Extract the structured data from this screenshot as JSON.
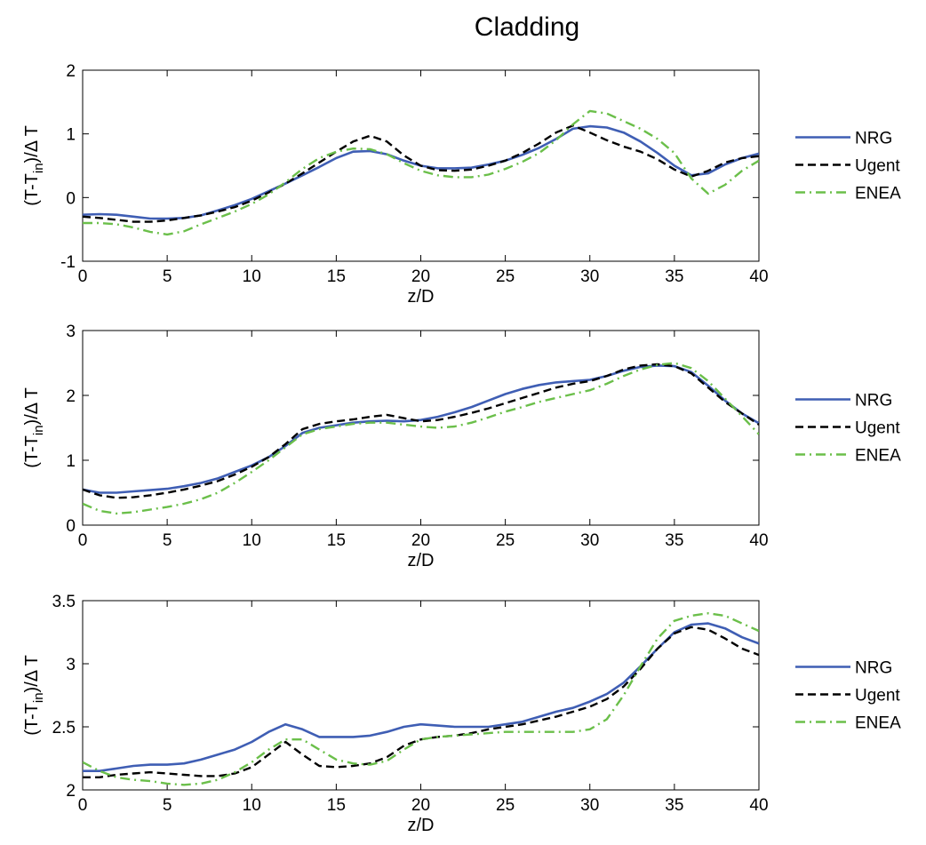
{
  "figure_title": "Cladding",
  "colors": {
    "NRG": "#3f5eb4",
    "Ugent": "#000000",
    "ENEA": "#6bbf4a"
  },
  "chart_data": [
    {
      "type": "line",
      "title": "Cladding",
      "xlabel": "z/D",
      "ylabel_main": "(T-T",
      "ylabel_sub": "in",
      "ylabel_tail": ")/Δ T",
      "xlim": [
        0,
        40
      ],
      "ylim": [
        -1,
        2
      ],
      "xticks": [
        "0",
        "5",
        "10",
        "15",
        "20",
        "25",
        "30",
        "35",
        "40"
      ],
      "yticks": [
        "-1",
        "0",
        "1",
        "2"
      ],
      "ytick_values": [
        -1,
        0,
        1,
        2
      ],
      "grid": false,
      "legend_position": "outside-right",
      "series": [
        {
          "name": "NRG",
          "style": "solid",
          "x": [
            0,
            1,
            2,
            3,
            4,
            5,
            6,
            7,
            8,
            9,
            10,
            11,
            12,
            13,
            14,
            15,
            16,
            17,
            18,
            19,
            20,
            21,
            22,
            23,
            24,
            25,
            26,
            27,
            28,
            29,
            30,
            31,
            32,
            33,
            34,
            35,
            36,
            37,
            38,
            39,
            40
          ],
          "y": [
            -0.27,
            -0.26,
            -0.27,
            -0.3,
            -0.33,
            -0.33,
            -0.32,
            -0.28,
            -0.2,
            -0.12,
            -0.02,
            0.1,
            0.22,
            0.35,
            0.48,
            0.62,
            0.72,
            0.73,
            0.68,
            0.58,
            0.5,
            0.46,
            0.46,
            0.47,
            0.52,
            0.58,
            0.67,
            0.78,
            0.92,
            1.08,
            1.12,
            1.1,
            1.02,
            0.88,
            0.7,
            0.5,
            0.35,
            0.38,
            0.52,
            0.62,
            0.69
          ]
        },
        {
          "name": "Ugent",
          "style": "dashed",
          "x": [
            0,
            1,
            2,
            3,
            4,
            5,
            6,
            7,
            8,
            9,
            10,
            11,
            12,
            13,
            14,
            15,
            16,
            17,
            18,
            19,
            20,
            21,
            22,
            23,
            24,
            25,
            26,
            27,
            28,
            29,
            30,
            31,
            32,
            33,
            34,
            35,
            36,
            37,
            38,
            39,
            40
          ],
          "y": [
            -0.3,
            -0.32,
            -0.35,
            -0.38,
            -0.38,
            -0.36,
            -0.32,
            -0.28,
            -0.22,
            -0.15,
            -0.05,
            0.08,
            0.22,
            0.38,
            0.55,
            0.72,
            0.88,
            0.97,
            0.88,
            0.66,
            0.5,
            0.43,
            0.42,
            0.44,
            0.5,
            0.58,
            0.7,
            0.85,
            1.02,
            1.13,
            1.02,
            0.9,
            0.8,
            0.72,
            0.6,
            0.44,
            0.33,
            0.42,
            0.55,
            0.62,
            0.65
          ]
        },
        {
          "name": "ENEA",
          "style": "dashdot",
          "x": [
            0,
            1,
            2,
            3,
            4,
            5,
            6,
            7,
            8,
            9,
            10,
            11,
            12,
            13,
            14,
            15,
            16,
            17,
            18,
            19,
            20,
            21,
            22,
            23,
            24,
            25,
            26,
            27,
            28,
            29,
            30,
            31,
            32,
            33,
            34,
            35,
            36,
            37,
            38,
            39,
            40
          ],
          "y": [
            -0.4,
            -0.4,
            -0.42,
            -0.47,
            -0.54,
            -0.58,
            -0.53,
            -0.42,
            -0.32,
            -0.22,
            -0.1,
            0.05,
            0.24,
            0.45,
            0.62,
            0.72,
            0.77,
            0.76,
            0.68,
            0.54,
            0.42,
            0.35,
            0.32,
            0.32,
            0.36,
            0.45,
            0.56,
            0.7,
            0.9,
            1.15,
            1.36,
            1.32,
            1.2,
            1.08,
            0.92,
            0.7,
            0.3,
            0.06,
            0.2,
            0.42,
            0.58
          ]
        }
      ]
    },
    {
      "type": "line",
      "xlabel": "z/D",
      "ylabel_main": "(T-T",
      "ylabel_sub": "in",
      "ylabel_tail": ")/Δ T",
      "xlim": [
        0,
        40
      ],
      "ylim": [
        0,
        3
      ],
      "xticks": [
        "0",
        "5",
        "10",
        "15",
        "20",
        "25",
        "30",
        "35",
        "40"
      ],
      "yticks": [
        "0",
        "1",
        "2",
        "3"
      ],
      "ytick_values": [
        0,
        1,
        2,
        3
      ],
      "grid": false,
      "legend_position": "outside-right",
      "series": [
        {
          "name": "NRG",
          "style": "solid",
          "x": [
            0,
            1,
            2,
            3,
            4,
            5,
            6,
            7,
            8,
            9,
            10,
            11,
            12,
            13,
            14,
            15,
            16,
            17,
            18,
            19,
            20,
            21,
            22,
            23,
            24,
            25,
            26,
            27,
            28,
            29,
            30,
            31,
            32,
            33,
            34,
            35,
            36,
            37,
            38,
            39,
            40
          ],
          "y": [
            0.55,
            0.5,
            0.5,
            0.52,
            0.54,
            0.56,
            0.6,
            0.65,
            0.72,
            0.82,
            0.92,
            1.05,
            1.22,
            1.42,
            1.5,
            1.54,
            1.58,
            1.6,
            1.61,
            1.6,
            1.62,
            1.67,
            1.74,
            1.82,
            1.92,
            2.02,
            2.1,
            2.16,
            2.2,
            2.22,
            2.24,
            2.3,
            2.38,
            2.44,
            2.46,
            2.45,
            2.36,
            2.15,
            1.92,
            1.72,
            1.57
          ]
        },
        {
          "name": "Ugent",
          "style": "dashed",
          "x": [
            0,
            1,
            2,
            3,
            4,
            5,
            6,
            7,
            8,
            9,
            10,
            11,
            12,
            13,
            14,
            15,
            16,
            17,
            18,
            19,
            20,
            21,
            22,
            23,
            24,
            25,
            26,
            27,
            28,
            29,
            30,
            31,
            32,
            33,
            34,
            35,
            36,
            37,
            38,
            39,
            40
          ],
          "y": [
            0.55,
            0.46,
            0.42,
            0.43,
            0.46,
            0.5,
            0.55,
            0.61,
            0.68,
            0.78,
            0.9,
            1.05,
            1.25,
            1.48,
            1.56,
            1.6,
            1.63,
            1.67,
            1.7,
            1.65,
            1.6,
            1.62,
            1.67,
            1.73,
            1.8,
            1.88,
            1.96,
            2.04,
            2.12,
            2.18,
            2.22,
            2.3,
            2.4,
            2.46,
            2.48,
            2.45,
            2.34,
            2.12,
            1.9,
            1.72,
            1.55
          ]
        },
        {
          "name": "ENEA",
          "style": "dashdot",
          "x": [
            0,
            1,
            2,
            3,
            4,
            5,
            6,
            7,
            8,
            9,
            10,
            11,
            12,
            13,
            14,
            15,
            16,
            17,
            18,
            19,
            20,
            21,
            22,
            23,
            24,
            25,
            26,
            27,
            28,
            29,
            30,
            31,
            32,
            33,
            34,
            35,
            36,
            37,
            38,
            39,
            40
          ],
          "y": [
            0.33,
            0.22,
            0.18,
            0.2,
            0.24,
            0.28,
            0.33,
            0.4,
            0.5,
            0.65,
            0.82,
            1.0,
            1.2,
            1.4,
            1.48,
            1.52,
            1.56,
            1.58,
            1.58,
            1.55,
            1.52,
            1.5,
            1.52,
            1.58,
            1.66,
            1.75,
            1.82,
            1.9,
            1.96,
            2.02,
            2.08,
            2.18,
            2.3,
            2.4,
            2.47,
            2.5,
            2.42,
            2.22,
            1.95,
            1.68,
            1.4
          ]
        }
      ]
    },
    {
      "type": "line",
      "xlabel": "z/D",
      "ylabel_main": "(T-T",
      "ylabel_sub": "in",
      "ylabel_tail": ")/Δ T",
      "xlim": [
        0,
        40
      ],
      "ylim": [
        2,
        3.5
      ],
      "xticks": [
        "0",
        "5",
        "10",
        "15",
        "20",
        "25",
        "30",
        "35",
        "40"
      ],
      "yticks": [
        "2",
        "2.5",
        "3",
        "3.5"
      ],
      "ytick_values": [
        2,
        2.5,
        3,
        3.5
      ],
      "grid": false,
      "legend_position": "outside-right",
      "series": [
        {
          "name": "NRG",
          "style": "solid",
          "x": [
            0,
            1,
            2,
            3,
            4,
            5,
            6,
            7,
            8,
            9,
            10,
            11,
            12,
            13,
            14,
            15,
            16,
            17,
            18,
            19,
            20,
            21,
            22,
            23,
            24,
            25,
            26,
            27,
            28,
            29,
            30,
            31,
            32,
            33,
            34,
            35,
            36,
            37,
            38,
            39,
            40
          ],
          "y": [
            2.15,
            2.15,
            2.17,
            2.19,
            2.2,
            2.2,
            2.21,
            2.24,
            2.28,
            2.32,
            2.38,
            2.46,
            2.52,
            2.48,
            2.42,
            2.42,
            2.42,
            2.43,
            2.46,
            2.5,
            2.52,
            2.51,
            2.5,
            2.5,
            2.5,
            2.52,
            2.54,
            2.58,
            2.62,
            2.65,
            2.7,
            2.76,
            2.85,
            2.98,
            3.12,
            3.25,
            3.31,
            3.32,
            3.28,
            3.21,
            3.16
          ]
        },
        {
          "name": "Ugent",
          "style": "dashed",
          "x": [
            0,
            1,
            2,
            3,
            4,
            5,
            6,
            7,
            8,
            9,
            10,
            11,
            12,
            13,
            14,
            15,
            16,
            17,
            18,
            19,
            20,
            21,
            22,
            23,
            24,
            25,
            26,
            27,
            28,
            29,
            30,
            31,
            32,
            33,
            34,
            35,
            36,
            37,
            38,
            39,
            40
          ],
          "y": [
            2.1,
            2.1,
            2.12,
            2.13,
            2.14,
            2.13,
            2.12,
            2.11,
            2.11,
            2.13,
            2.18,
            2.28,
            2.38,
            2.28,
            2.19,
            2.18,
            2.19,
            2.21,
            2.26,
            2.35,
            2.4,
            2.42,
            2.43,
            2.45,
            2.48,
            2.5,
            2.52,
            2.55,
            2.58,
            2.62,
            2.66,
            2.72,
            2.82,
            2.96,
            3.12,
            3.24,
            3.29,
            3.27,
            3.2,
            3.12,
            3.07
          ]
        },
        {
          "name": "ENEA",
          "style": "dashdot",
          "x": [
            0,
            1,
            2,
            3,
            4,
            5,
            6,
            7,
            8,
            9,
            10,
            11,
            12,
            13,
            14,
            15,
            16,
            17,
            18,
            19,
            20,
            21,
            22,
            23,
            24,
            25,
            26,
            27,
            28,
            29,
            30,
            31,
            32,
            33,
            34,
            35,
            36,
            37,
            38,
            39,
            40
          ],
          "y": [
            2.22,
            2.15,
            2.1,
            2.08,
            2.07,
            2.05,
            2.04,
            2.05,
            2.08,
            2.14,
            2.22,
            2.32,
            2.4,
            2.4,
            2.32,
            2.24,
            2.21,
            2.2,
            2.23,
            2.32,
            2.4,
            2.42,
            2.43,
            2.44,
            2.45,
            2.46,
            2.46,
            2.46,
            2.46,
            2.46,
            2.48,
            2.56,
            2.75,
            2.98,
            3.2,
            3.34,
            3.38,
            3.4,
            3.38,
            3.32,
            3.26
          ]
        }
      ]
    }
  ]
}
